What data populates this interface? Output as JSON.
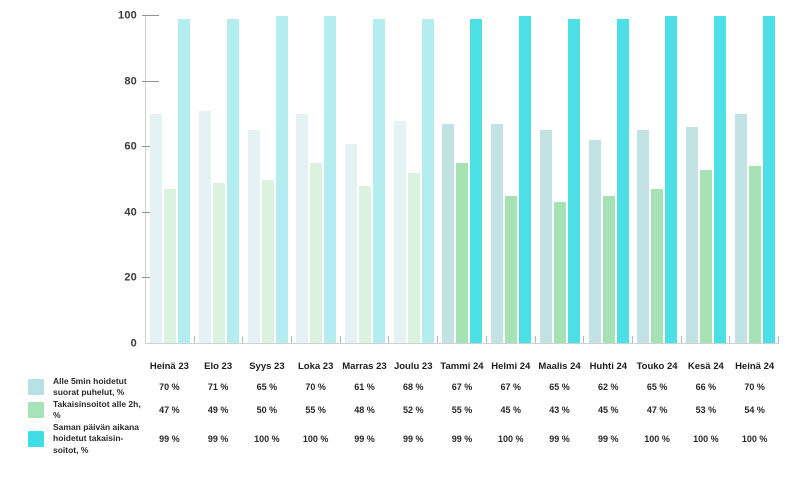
{
  "colors": {
    "background": "#ffffff",
    "axis_line": "#cdd3d4",
    "y_tick": "#8f9597",
    "group_tick": "#b4b9bb",
    "header_text": "#1d1d1f",
    "value_text": "#28282a",
    "axis_label_text": "#3a3b3d"
  },
  "chart_data": {
    "type": "bar",
    "title": "",
    "xlabel": "",
    "ylabel": "",
    "ylim": [
      0,
      100
    ],
    "yticks": [
      0,
      20,
      40,
      60,
      80,
      100
    ],
    "grid": false,
    "legend_position": "bottom-left",
    "palette_switch_index": 6,
    "value_suffix": " %",
    "categories": [
      "Heinä 23",
      "Elo 23",
      "Syys 23",
      "Loka 23",
      "Marras 23",
      "Joulu 23",
      "Tammi 24",
      "Helmi 24",
      "Maalis 24",
      "Huhti 24",
      "Touko 24",
      "Kesä 24",
      "Heinä 24"
    ],
    "series": [
      {
        "name": "Alle 5min hoidetut suorat puhelut, %",
        "legend_lines": [
          "Alle 5min hoidetut",
          "suorat puhelut, %"
        ],
        "values": [
          70,
          71,
          65,
          70,
          61,
          68,
          67,
          67,
          65,
          62,
          65,
          66,
          70
        ],
        "display_values": [
          "70 %",
          "71 %",
          "65 %",
          "70 %",
          "61 %",
          "68 %",
          "67 %",
          "67 %",
          "65 %",
          "62 %",
          "65 %",
          "66 %",
          "70 %"
        ],
        "color_2023": "#e4f2f3",
        "color_2024": "#c3e2e4",
        "legend_color": "#b7e1e4"
      },
      {
        "name": "Takaisinsoitot alle 2h, %",
        "legend_lines": [
          "Takaisinsoitot alle 2h, %"
        ],
        "values": [
          47,
          49,
          50,
          55,
          48,
          52,
          55,
          45,
          43,
          45,
          47,
          53,
          54
        ],
        "display_values": [
          "47 %",
          "49 %",
          "50 %",
          "55 %",
          "48 %",
          "52 %",
          "55 %",
          "45 %",
          "43 %",
          "45 %",
          "47 %",
          "53 %",
          "54 %"
        ],
        "color_2023": "#daf2df",
        "color_2024": "#a6e2b4",
        "legend_color": "#a6e3b8"
      },
      {
        "name": "Saman päivän aikana hoidetut takaisinsoitot, %",
        "legend_lines": [
          "Saman päivän aikana",
          "hoidetut takaisin-",
          "soitot, %"
        ],
        "values": [
          99,
          99,
          100,
          100,
          99,
          99,
          99,
          100,
          99,
          99,
          100,
          100,
          100
        ],
        "display_values": [
          "99 %",
          "99 %",
          "100 %",
          "100 %",
          "99 %",
          "99 %",
          "99 %",
          "100 %",
          "99 %",
          "99 %",
          "100 %",
          "100 %",
          "100 %"
        ],
        "color_2023": "#b4edf0",
        "color_2024": "#4cdfe6",
        "legend_color": "#3fdee6"
      }
    ]
  }
}
